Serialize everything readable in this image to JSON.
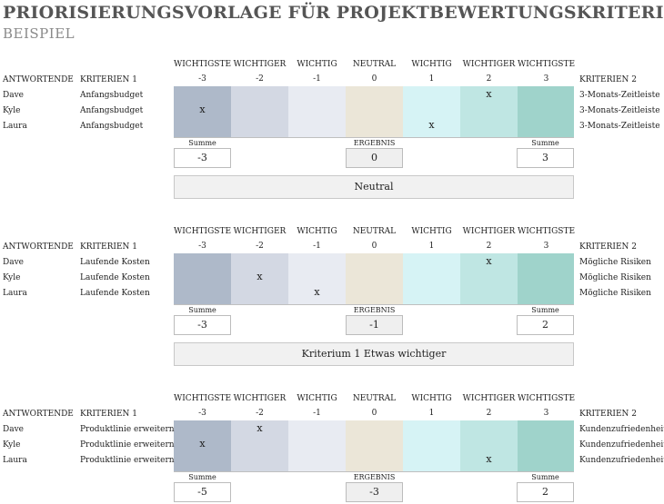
{
  "title": "PRIORISIERUNGSVORLAGE FÜR PROJEKTBEWERTUNGSKRITERIEN",
  "subtitle": "BEISPIEL",
  "scale": {
    "labels": [
      "WICHTIGSTE",
      "WICHTIGER",
      "WICHTIG",
      "NEUTRAL",
      "WICHTIG",
      "WICHTIGER",
      "WICHTIGSTE"
    ],
    "values": [
      "-3",
      "-2",
      "-1",
      "0",
      "1",
      "2",
      "3"
    ],
    "colors": [
      "#aeb9c9",
      "#d3d8e3",
      "#e8ebf2",
      "#ebe6d8",
      "#d6f3f5",
      "#bfe6e3",
      "#9fd3cb"
    ]
  },
  "labels": {
    "respondents": "ANTWORTENDE",
    "criteria1": "KRITERIEN 1",
    "criteria2": "KRITERIEN 2",
    "sum": "Summe",
    "result": "ERGEBNIS"
  },
  "sections": [
    {
      "rows": [
        {
          "name": "Dave",
          "c1": "Anfangsbudget",
          "c2": "3-Monats-Zeitleiste",
          "mark": 5
        },
        {
          "name": "Kyle",
          "c1": "Anfangsbudget",
          "c2": "3-Monats-Zeitleiste",
          "mark": 0
        },
        {
          "name": "Laura",
          "c1": "Anfangsbudget",
          "c2": "3-Monats-Zeitleiste",
          "mark": 4
        }
      ],
      "sum_left": "-3",
      "result": "0",
      "sum_right": "3",
      "verdict": "Neutral"
    },
    {
      "rows": [
        {
          "name": "Dave",
          "c1": "Laufende Kosten",
          "c2": "Mögliche Risiken",
          "mark": 5
        },
        {
          "name": "Kyle",
          "c1": "Laufende Kosten",
          "c2": "Mögliche Risiken",
          "mark": 1
        },
        {
          "name": "Laura",
          "c1": "Laufende Kosten",
          "c2": "Mögliche Risiken",
          "mark": 2
        }
      ],
      "sum_left": "-3",
      "result": "-1",
      "sum_right": "2",
      "verdict": "Kriterium 1 Etwas wichtiger"
    },
    {
      "rows": [
        {
          "name": "Dave",
          "c1": "Produktlinie erweitern",
          "c2": "Kundenzufriedenheit",
          "mark": 1
        },
        {
          "name": "Kyle",
          "c1": "Produktlinie erweitern",
          "c2": "Kundenzufriedenheit",
          "mark": 0
        },
        {
          "name": "Laura",
          "c1": "Produktlinie erweitern",
          "c2": "Kundenzufriedenheit",
          "mark": 5
        }
      ],
      "sum_left": "-5",
      "result": "-3",
      "sum_right": "2",
      "verdict": ""
    }
  ],
  "mark_symbol": "x"
}
